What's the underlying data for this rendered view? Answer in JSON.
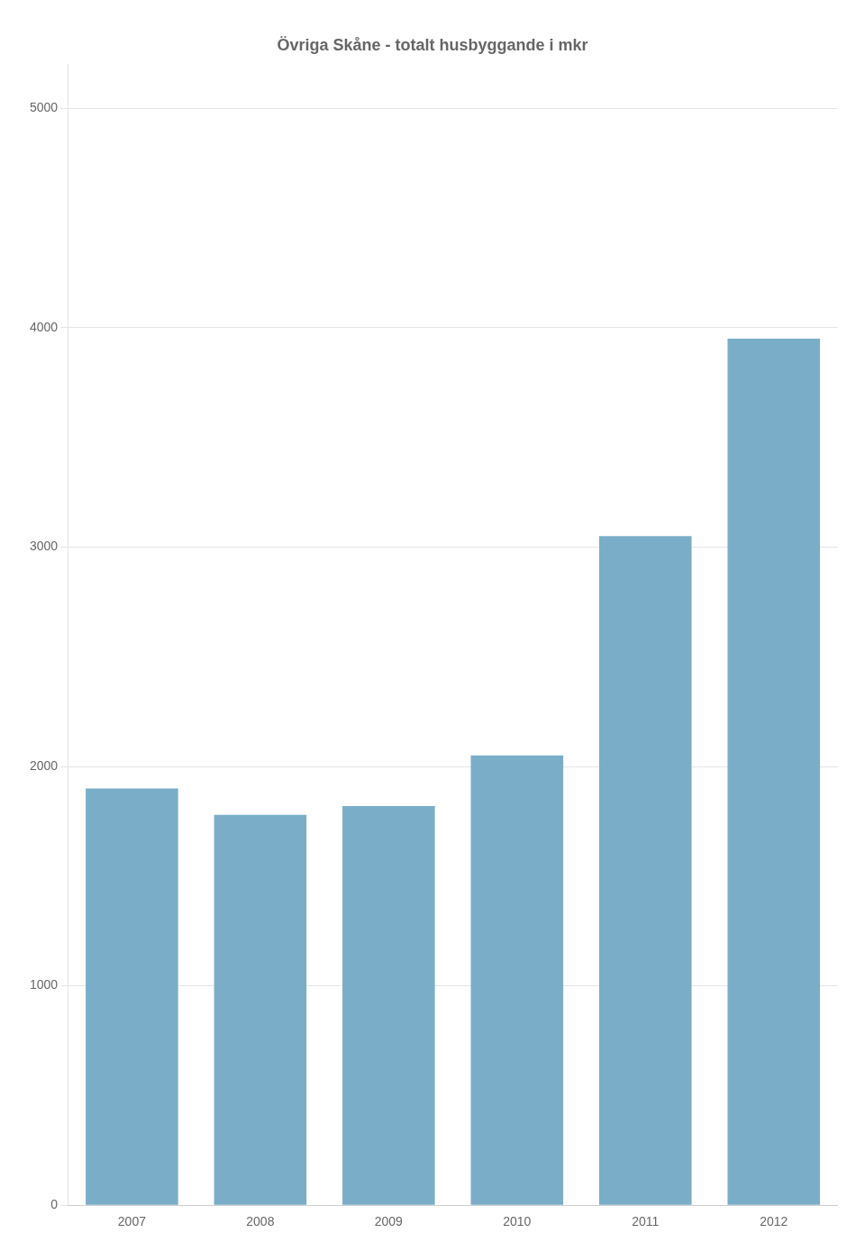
{
  "chart_data": {
    "type": "bar",
    "title": "Övriga Skåne - totalt husbyggande i mkr",
    "categories": [
      "2007",
      "2008",
      "2009",
      "2010",
      "2011",
      "2012"
    ],
    "values": [
      1900,
      1780,
      1820,
      2050,
      3050,
      3950
    ],
    "color": "#7aaec8",
    "ylim": [
      0,
      5200
    ],
    "yticks": [
      0,
      1000,
      2000,
      3000,
      4000,
      5000
    ],
    "grid": true
  }
}
